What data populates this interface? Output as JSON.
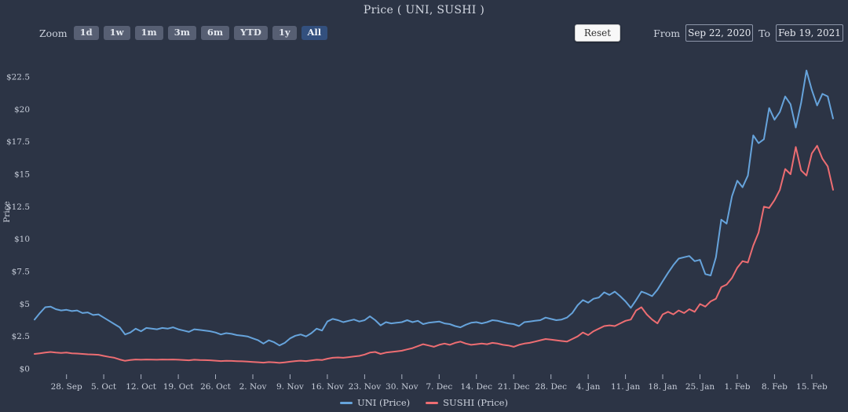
{
  "title": "Price ( UNI, SUSHI )",
  "toolbar": {
    "zoom_label": "Zoom",
    "range_buttons": [
      "1d",
      "1w",
      "1m",
      "3m",
      "6m",
      "YTD",
      "1y",
      "All"
    ],
    "range_selected": "All",
    "reset_label": "Reset",
    "from_label": "From",
    "from_value": "Sep 22, 2020",
    "to_label": "To",
    "to_value": "Feb 19, 2021"
  },
  "colors": {
    "background": "#2c3445",
    "uni_line": "#66a3db",
    "sushi_line": "#ed6d72",
    "axis_text": "#c6ccd8",
    "selected_button": "#33507e"
  },
  "chart_data": {
    "type": "line",
    "title": "Price ( UNI, SUSHI )",
    "ylabel": "Price",
    "xlabel": "",
    "x_unit": "day",
    "x_start_date": "Sep 22, 2020",
    "x_end_date": "Feb 19, 2021",
    "ylim": [
      0,
      22.5
    ],
    "grid": false,
    "legend_position": "bottom",
    "y_ticks": [
      {
        "label": "$0",
        "value": 0
      },
      {
        "label": "$2.5",
        "value": 2.5
      },
      {
        "label": "$5",
        "value": 5
      },
      {
        "label": "$7.5",
        "value": 7.5
      },
      {
        "label": "$10",
        "value": 10
      },
      {
        "label": "$12.5",
        "value": 12.5
      },
      {
        "label": "$15",
        "value": 15
      },
      {
        "label": "$17.5",
        "value": 17.5
      },
      {
        "label": "$20",
        "value": 20
      },
      {
        "label": "$22.5",
        "value": 22.5
      }
    ],
    "x_ticks": [
      {
        "label": "28. Sep",
        "day": 6
      },
      {
        "label": "5. Oct",
        "day": 13
      },
      {
        "label": "12. Oct",
        "day": 20
      },
      {
        "label": "19. Oct",
        "day": 27
      },
      {
        "label": "26. Oct",
        "day": 34
      },
      {
        "label": "2. Nov",
        "day": 41
      },
      {
        "label": "9. Nov",
        "day": 48
      },
      {
        "label": "16. Nov",
        "day": 55
      },
      {
        "label": "23. Nov",
        "day": 62
      },
      {
        "label": "30. Nov",
        "day": 69
      },
      {
        "label": "7. Dec",
        "day": 76
      },
      {
        "label": "14. Dec",
        "day": 83
      },
      {
        "label": "21. Dec",
        "day": 90
      },
      {
        "label": "28. Dec",
        "day": 97
      },
      {
        "label": "4. Jan",
        "day": 104
      },
      {
        "label": "11. Jan",
        "day": 111
      },
      {
        "label": "18. Jan",
        "day": 118
      },
      {
        "label": "25. Jan",
        "day": 125
      },
      {
        "label": "1. Feb",
        "day": 132
      },
      {
        "label": "8. Feb",
        "day": 139
      },
      {
        "label": "15. Feb",
        "day": 146
      }
    ],
    "series": [
      {
        "name": "UNI (Price)",
        "color": "#66a3db",
        "values": [
          3.8,
          4.3,
          4.75,
          4.8,
          4.6,
          4.5,
          4.55,
          4.45,
          4.5,
          4.3,
          4.35,
          4.15,
          4.2,
          3.95,
          3.7,
          3.45,
          3.2,
          2.65,
          2.8,
          3.1,
          2.9,
          3.15,
          3.1,
          3.05,
          3.15,
          3.1,
          3.2,
          3.05,
          2.95,
          2.85,
          3.05,
          3.0,
          2.95,
          2.9,
          2.8,
          2.65,
          2.75,
          2.7,
          2.6,
          2.55,
          2.5,
          2.35,
          2.2,
          1.95,
          2.2,
          2.05,
          1.8,
          2.0,
          2.35,
          2.55,
          2.65,
          2.5,
          2.75,
          3.1,
          2.95,
          3.65,
          3.85,
          3.75,
          3.6,
          3.7,
          3.8,
          3.65,
          3.75,
          4.05,
          3.75,
          3.35,
          3.6,
          3.5,
          3.55,
          3.6,
          3.75,
          3.6,
          3.7,
          3.45,
          3.55,
          3.6,
          3.65,
          3.5,
          3.45,
          3.3,
          3.2,
          3.4,
          3.55,
          3.6,
          3.5,
          3.6,
          3.75,
          3.7,
          3.6,
          3.5,
          3.45,
          3.3,
          3.6,
          3.65,
          3.7,
          3.75,
          3.95,
          3.85,
          3.75,
          3.8,
          3.95,
          4.3,
          4.9,
          5.3,
          5.1,
          5.4,
          5.5,
          5.9,
          5.7,
          5.95,
          5.6,
          5.2,
          4.7,
          5.3,
          5.95,
          5.8,
          5.6,
          6.1,
          6.75,
          7.4,
          8.0,
          8.5,
          8.6,
          8.7,
          8.3,
          8.4,
          7.3,
          7.2,
          8.6,
          11.5,
          11.2,
          13.3,
          14.5,
          14.0,
          14.9,
          18.0,
          17.4,
          17.7,
          20.1,
          19.2,
          19.8,
          21.0,
          20.4,
          18.6,
          20.5,
          23.0,
          21.5,
          20.3,
          21.2,
          21.0,
          19.3
        ]
      },
      {
        "name": "SUSHI (Price)",
        "color": "#ed6d72",
        "values": [
          1.15,
          1.2,
          1.25,
          1.3,
          1.25,
          1.22,
          1.25,
          1.2,
          1.18,
          1.15,
          1.12,
          1.1,
          1.08,
          1.0,
          0.92,
          0.85,
          0.72,
          0.62,
          0.68,
          0.72,
          0.7,
          0.72,
          0.71,
          0.7,
          0.72,
          0.71,
          0.72,
          0.7,
          0.68,
          0.66,
          0.7,
          0.68,
          0.67,
          0.66,
          0.63,
          0.6,
          0.62,
          0.61,
          0.59,
          0.58,
          0.56,
          0.53,
          0.51,
          0.48,
          0.52,
          0.5,
          0.46,
          0.5,
          0.55,
          0.6,
          0.63,
          0.6,
          0.65,
          0.7,
          0.68,
          0.78,
          0.85,
          0.88,
          0.85,
          0.9,
          0.95,
          1.0,
          1.1,
          1.25,
          1.3,
          1.15,
          1.25,
          1.3,
          1.35,
          1.4,
          1.5,
          1.6,
          1.75,
          1.9,
          1.8,
          1.7,
          1.85,
          1.95,
          1.85,
          2.0,
          2.1,
          1.95,
          1.85,
          1.9,
          1.95,
          1.9,
          2.0,
          1.95,
          1.85,
          1.8,
          1.7,
          1.85,
          1.95,
          2.0,
          2.1,
          2.2,
          2.3,
          2.25,
          2.2,
          2.15,
          2.1,
          2.3,
          2.5,
          2.8,
          2.6,
          2.9,
          3.1,
          3.3,
          3.35,
          3.3,
          3.5,
          3.7,
          3.8,
          4.5,
          4.75,
          4.2,
          3.8,
          3.5,
          4.2,
          4.4,
          4.2,
          4.5,
          4.3,
          4.6,
          4.4,
          5.0,
          4.8,
          5.2,
          5.4,
          6.3,
          6.5,
          7.0,
          7.8,
          8.3,
          8.2,
          9.5,
          10.5,
          12.5,
          12.4,
          13.0,
          13.8,
          15.4,
          15.0,
          17.1,
          15.3,
          14.9,
          16.6,
          17.2,
          16.2,
          15.6,
          13.8
        ]
      }
    ]
  }
}
